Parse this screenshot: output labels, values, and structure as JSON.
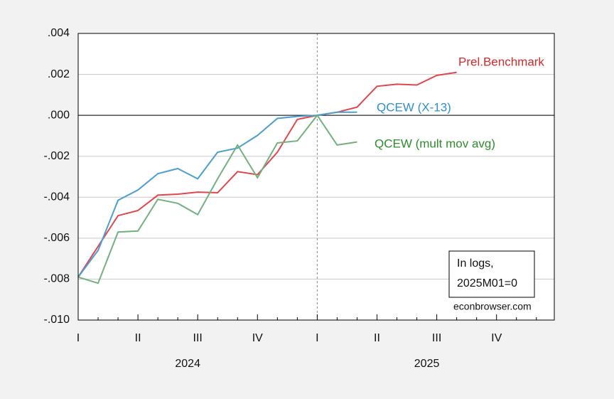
{
  "chart_data": {
    "type": "line",
    "categories": [
      "I",
      null,
      null,
      "II",
      null,
      null,
      "III",
      null,
      null,
      "IV",
      null,
      null,
      "I",
      null,
      null,
      "II",
      null,
      null,
      "III",
      null,
      null,
      "IV",
      null,
      null
    ],
    "year_labels": [
      "2024",
      "2025"
    ],
    "series": [
      {
        "name": "Prel.Benchmark",
        "color": "#e0474c",
        "label_color": "#d42a2a",
        "values": [
          -0.0079,
          -0.0064,
          -0.0049,
          -0.00465,
          -0.0039,
          -0.00385,
          -0.00375,
          -0.00378,
          -0.00275,
          -0.0029,
          -0.0018,
          -0.0002,
          0,
          0.00015,
          0.0004,
          0.00142,
          0.00152,
          0.00148,
          0.00195,
          0.0021,
          null,
          null,
          null,
          null
        ]
      },
      {
        "name": "QCEW (X-13)",
        "color": "#4a9fcf",
        "label_color": "#2f8fcc",
        "values": [
          -0.0079,
          -0.0066,
          -0.00415,
          -0.00365,
          -0.00285,
          -0.0026,
          -0.0031,
          -0.0018,
          -0.0016,
          -0.00098,
          -0.00015,
          -5e-05,
          0,
          0.00015,
          0.00015,
          null,
          null,
          null,
          null,
          null,
          null,
          null,
          null,
          null
        ]
      },
      {
        "name": "QCEW (mult mov avg)",
        "color": "#72b07f",
        "label_color": "#2e8b2e",
        "values": [
          -0.0079,
          -0.0082,
          -0.0057,
          -0.00565,
          -0.0041,
          -0.0043,
          -0.00485,
          -0.0031,
          -0.00145,
          -0.00305,
          -0.00135,
          -0.00125,
          0,
          -0.00145,
          -0.0013,
          null,
          null,
          null,
          null,
          null,
          null,
          null,
          null,
          null
        ]
      }
    ],
    "ylim": [
      -0.01,
      0.004
    ],
    "yticks": [
      {
        "value": -0.01,
        "label": "-.010"
      },
      {
        "value": -0.008,
        "label": "-.008"
      },
      {
        "value": -0.006,
        "label": "-.006"
      },
      {
        "value": -0.004,
        "label": "-.004"
      },
      {
        "value": -0.002,
        "label": "-.002"
      },
      {
        "value": 0,
        "label": ".000"
      },
      {
        "value": 0.002,
        "label": ".002"
      },
      {
        "value": 0.004,
        "label": ".004"
      }
    ],
    "grid": true,
    "annotation": [
      "In logs,",
      "2025M01=0"
    ],
    "source": "econbrowser.com"
  }
}
